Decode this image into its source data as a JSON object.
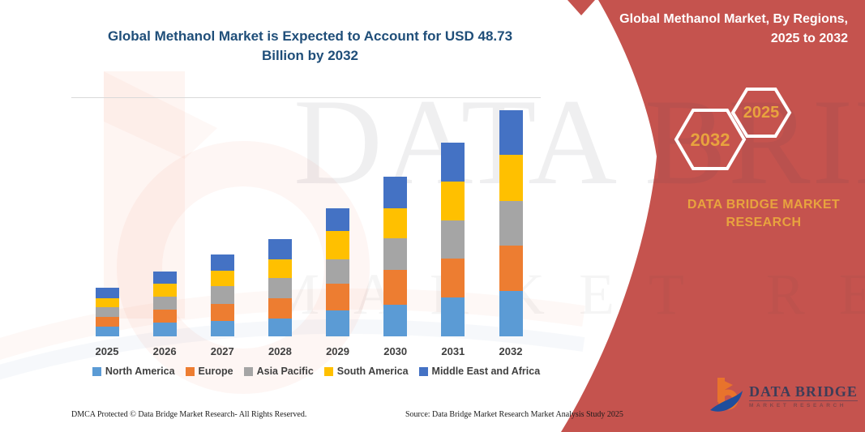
{
  "header": {
    "chart_title_line1": "Global Methanol Market is Expected to Account for USD 48.73",
    "chart_title_line2": "Billion by 2032"
  },
  "panel": {
    "title_line1": "Global Methanol Market, By Regions,",
    "title_line2": "2025 to 2032",
    "hexagon_large_label": "2032",
    "hexagon_small_label": "2025",
    "brand_line1": "DATA BRIDGE MARKET",
    "brand_line2": "RESEARCH",
    "bg_color": "#C5534E",
    "accent_color": "#E8A33E"
  },
  "logo": {
    "title": "DATA BRIDGE",
    "subtitle": "MARKET RESEARCH"
  },
  "watermark": {
    "line1": "DATA BRIDGE",
    "line2": "MARKET RESEARCH"
  },
  "footer": {
    "left_text": "DMCA Protected © Data Bridge Market Research-  All Rights Reserved.",
    "right_text": "Source: Data Bridge Market Research  Market Analysis Study 2025"
  },
  "chart_data": {
    "type": "bar",
    "stacked": true,
    "title": "Global Methanol Market is Expected to Account for USD 48.73 Billion by 2032",
    "unit": "USD Billion",
    "categories": [
      "2025",
      "2026",
      "2027",
      "2028",
      "2029",
      "2030",
      "2031",
      "2032"
    ],
    "series": [
      {
        "name": "North America",
        "color": "#5B9BD5",
        "values": [
          2.1,
          3.0,
          3.3,
          3.8,
          5.6,
          6.8,
          8.4,
          9.8
        ]
      },
      {
        "name": "Europe",
        "color": "#ED7D31",
        "values": [
          2.1,
          2.8,
          3.7,
          4.4,
          5.8,
          7.5,
          8.4,
          9.8
        ]
      },
      {
        "name": "Asia Pacific",
        "color": "#A5A5A5",
        "values": [
          2.1,
          2.8,
          3.8,
          4.4,
          5.2,
          6.8,
          8.2,
          9.6
        ]
      },
      {
        "name": "South America",
        "color": "#FFC000",
        "values": [
          1.9,
          2.8,
          3.3,
          4.0,
          6.1,
          6.6,
          8.4,
          10.0
        ]
      },
      {
        "name": "Middle East and Africa",
        "color": "#4472C4",
        "values": [
          2.3,
          2.6,
          3.5,
          4.4,
          4.9,
          6.8,
          8.4,
          9.6
        ]
      }
    ],
    "totals": [
      10.5,
      14.0,
      17.6,
      21.0,
      27.6,
      34.5,
      41.8,
      48.73
    ],
    "ylim": [
      0,
      50
    ],
    "grid": false,
    "y_axis_visible": false,
    "legend_position": "bottom"
  }
}
